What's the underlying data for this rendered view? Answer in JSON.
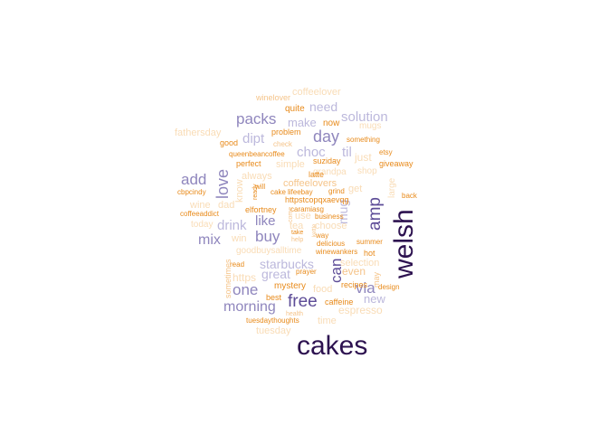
{
  "palette": {
    "darkest": "#2d1250",
    "dark": "#5d4c97",
    "mid": "#8f86bd",
    "light": "#bcb8dc",
    "orange": "#e88a1a",
    "peach": "#f5c48a",
    "pale": "#f9dcb6"
  },
  "words": [
    {
      "text": "cakes",
      "color": "#2d1250"
    },
    {
      "text": "welsh",
      "color": "#2d1250"
    },
    {
      "text": "free",
      "color": "#5d4c97"
    },
    {
      "text": "amp",
      "color": "#5d4c97"
    },
    {
      "text": "buy",
      "color": "#8f86bd"
    },
    {
      "text": "can",
      "color": "#5d4c97"
    },
    {
      "text": "day",
      "color": "#8f86bd"
    },
    {
      "text": "love",
      "color": "#8f86bd"
    },
    {
      "text": "add",
      "color": "#8f86bd"
    },
    {
      "text": "packs",
      "color": "#8f86bd"
    },
    {
      "text": "one",
      "color": "#8f86bd"
    },
    {
      "text": "via",
      "color": "#8f86bd"
    },
    {
      "text": "morning",
      "color": "#8f86bd"
    },
    {
      "text": "mix",
      "color": "#8f86bd"
    },
    {
      "text": "like",
      "color": "#8f86bd"
    },
    {
      "text": "choc",
      "color": "#bcb8dc"
    },
    {
      "text": "solution",
      "color": "#bcb8dc"
    },
    {
      "text": "need",
      "color": "#bcb8dc"
    },
    {
      "text": "dipt",
      "color": "#bcb8dc"
    },
    {
      "text": "drink",
      "color": "#bcb8dc"
    },
    {
      "text": "starbucks",
      "color": "#bcb8dc"
    },
    {
      "text": "great",
      "color": "#bcb8dc"
    },
    {
      "text": "new",
      "color": "#bcb8dc"
    },
    {
      "text": "til",
      "color": "#bcb8dc"
    },
    {
      "text": "mug",
      "color": "#bcb8dc"
    },
    {
      "text": "make",
      "color": "#bcb8dc"
    },
    {
      "text": "even",
      "color": "#f5c48a"
    },
    {
      "text": "coffeelover",
      "color": "#f9dcb6"
    },
    {
      "text": "fathersday",
      "color": "#f9dcb6"
    },
    {
      "text": "winelover",
      "color": "#f5c48a"
    },
    {
      "text": "quite",
      "color": "#e88a1a"
    },
    {
      "text": "now",
      "color": "#e88a1a"
    },
    {
      "text": "mugs",
      "color": "#f9dcb6"
    },
    {
      "text": "problem",
      "color": "#e88a1a"
    },
    {
      "text": "something",
      "color": "#e88a1a"
    },
    {
      "text": "good",
      "color": "#e88a1a"
    },
    {
      "text": "check",
      "color": "#f5c48a"
    },
    {
      "text": "queenbeancoffee",
      "color": "#e88a1a"
    },
    {
      "text": "etsy",
      "color": "#e88a1a"
    },
    {
      "text": "suziday",
      "color": "#e88a1a"
    },
    {
      "text": "just",
      "color": "#f9dcb6"
    },
    {
      "text": "giveaway",
      "color": "#e88a1a"
    },
    {
      "text": "perfect",
      "color": "#e88a1a"
    },
    {
      "text": "simple",
      "color": "#f9dcb6"
    },
    {
      "text": "grandpa",
      "color": "#f9dcb6"
    },
    {
      "text": "shop",
      "color": "#f9dcb6"
    },
    {
      "text": "always",
      "color": "#f9dcb6"
    },
    {
      "text": "latte",
      "color": "#e88a1a"
    },
    {
      "text": "cbpcindy",
      "color": "#e88a1a"
    },
    {
      "text": "will",
      "color": "#e88a1a"
    },
    {
      "text": "coffeelovers",
      "color": "#f5c48a"
    },
    {
      "text": "know",
      "color": "#f9dcb6"
    },
    {
      "text": "large",
      "color": "#f9dcb6"
    },
    {
      "text": "cake",
      "color": "#e88a1a"
    },
    {
      "text": "lifeebay",
      "color": "#e88a1a"
    },
    {
      "text": "grind",
      "color": "#e88a1a"
    },
    {
      "text": "get",
      "color": "#f9dcb6"
    },
    {
      "text": "back",
      "color": "#e88a1a"
    },
    {
      "text": "ready",
      "color": "#e88a1a"
    },
    {
      "text": "httpstcopqxaevqg",
      "color": "#e88a1a"
    },
    {
      "text": "wine",
      "color": "#f9dcb6"
    },
    {
      "text": "dad",
      "color": "#f9dcb6"
    },
    {
      "text": "elfortney",
      "color": "#e88a1a"
    },
    {
      "text": "caramiasg",
      "color": "#e88a1a"
    },
    {
      "text": "coffeeaddict",
      "color": "#e88a1a"
    },
    {
      "text": "tea",
      "color": "#f9dcb6"
    },
    {
      "text": "use",
      "color": "#f9dcb6"
    },
    {
      "text": "business",
      "color": "#e88a1a"
    },
    {
      "text": "today",
      "color": "#f9dcb6"
    },
    {
      "text": "come",
      "color": "#f5c48a"
    },
    {
      "text": "choose",
      "color": "#f9dcb6"
    },
    {
      "text": "take",
      "color": "#e88a1a"
    },
    {
      "text": "way",
      "color": "#e88a1a"
    },
    {
      "text": "win",
      "color": "#f9dcb6"
    },
    {
      "text": "help",
      "color": "#f5c48a"
    },
    {
      "text": "kettle",
      "color": "#f5c48a"
    },
    {
      "text": "delicious",
      "color": "#e88a1a"
    },
    {
      "text": "summer",
      "color": "#e88a1a"
    },
    {
      "text": "goodbuysalltime",
      "color": "#f9dcb6"
    },
    {
      "text": "winewankers",
      "color": "#e88a1a"
    },
    {
      "text": "hot",
      "color": "#e88a1a"
    },
    {
      "text": "read",
      "color": "#e88a1a"
    },
    {
      "text": "selection",
      "color": "#f9dcb6"
    },
    {
      "text": "sometimes",
      "color": "#f5c48a"
    },
    {
      "text": "https",
      "color": "#f9dcb6"
    },
    {
      "text": "prayer",
      "color": "#e88a1a"
    },
    {
      "text": "may",
      "color": "#f5c48a"
    },
    {
      "text": "mystery",
      "color": "#e88a1a"
    },
    {
      "text": "food",
      "color": "#f9dcb6"
    },
    {
      "text": "recipes",
      "color": "#e88a1a"
    },
    {
      "text": "design",
      "color": "#e88a1a"
    },
    {
      "text": "best",
      "color": "#e88a1a"
    },
    {
      "text": "caffeine",
      "color": "#e88a1a"
    },
    {
      "text": "espresso",
      "color": "#f9dcb6"
    },
    {
      "text": "health",
      "color": "#f5c48a"
    },
    {
      "text": "tuesdaythoughts",
      "color": "#e88a1a"
    },
    {
      "text": "time",
      "color": "#f9dcb6"
    },
    {
      "text": "tuesday",
      "color": "#f9dcb6"
    }
  ]
}
